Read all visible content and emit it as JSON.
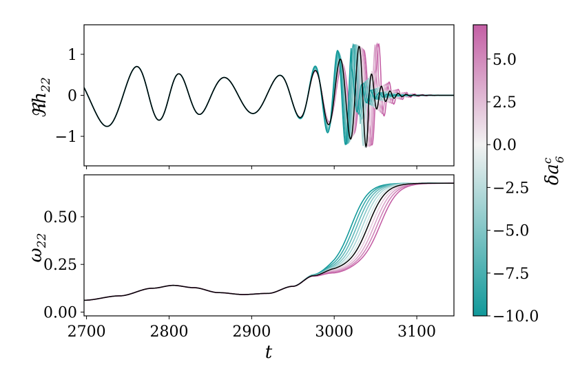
{
  "colors": {
    "positive": "#c45fa5",
    "negative": "#11999a",
    "mid": "#f2f2f2",
    "reference": "#000000"
  },
  "chart_data": [
    {
      "type": "line",
      "panel": "top",
      "ylabel": "ℜh",
      "ylabel_sub": "22",
      "xlim": [
        2697,
        3145
      ],
      "ylim": [
        -1.72,
        1.72
      ],
      "yticks": [
        {
          "value": 1,
          "label": "1"
        },
        {
          "value": 0,
          "label": "0"
        },
        {
          "value": -1,
          "label": "−1"
        }
      ],
      "series": [
        {
          "name": "reference",
          "description": "black curve, δa6c = 0"
        },
        {
          "name": "δa6c = 7",
          "description": "magenta curves"
        },
        {
          "name": "δa6c = -10",
          "description": "teal curves"
        }
      ]
    },
    {
      "type": "line",
      "panel": "bottom",
      "xlabel": "t",
      "ylabel": "ω",
      "ylabel_sub": "22",
      "xlim": [
        2697,
        3145
      ],
      "ylim": [
        -0.02,
        0.72
      ],
      "xticks": [
        {
          "value": 2700,
          "label": "2700"
        },
        {
          "value": 2800,
          "label": "2800"
        },
        {
          "value": 2900,
          "label": "2900"
        },
        {
          "value": 3000,
          "label": "3000"
        },
        {
          "value": 3100,
          "label": "3100"
        }
      ],
      "yticks": [
        {
          "value": 0.5,
          "label": "0.50"
        },
        {
          "value": 0.25,
          "label": "0.25"
        },
        {
          "value": 0.0,
          "label": "0.00"
        }
      ],
      "series": [
        {
          "name": "reference",
          "description": "black curve, δa6c = 0"
        }
      ]
    },
    {
      "type": "colorbar",
      "label": "δa",
      "label_sup": "c",
      "label_sub": "6",
      "range": [
        -10.0,
        7.0
      ],
      "ticks": [
        {
          "value": 5.0,
          "label": "5.0"
        },
        {
          "value": 2.5,
          "label": "2.5"
        },
        {
          "value": 0.0,
          "label": "0.0"
        },
        {
          "value": -2.5,
          "label": "−2.5"
        },
        {
          "value": -5.0,
          "label": "−5.0"
        },
        {
          "value": -7.5,
          "label": "−7.5"
        },
        {
          "value": -10.0,
          "label": "−10.0"
        }
      ]
    }
  ]
}
